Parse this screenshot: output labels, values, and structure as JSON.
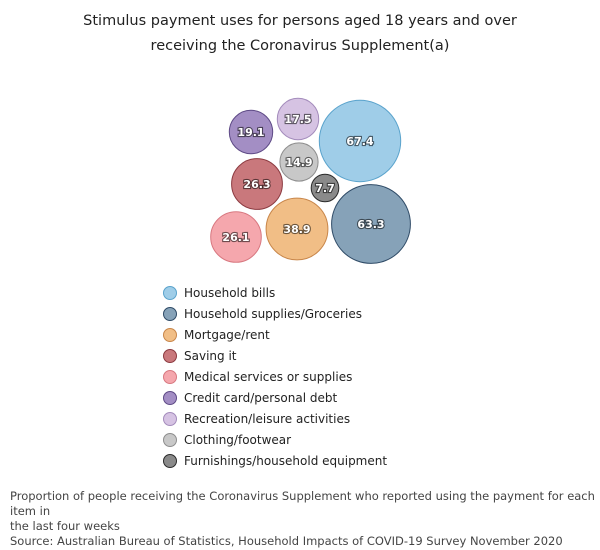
{
  "title_line1": "Stimulus payment uses for persons aged 18 years and over",
  "title_line2": "receiving the Coronavirus Supplement(a)",
  "chart_data": {
    "type": "bubble",
    "title": "Stimulus payment uses for persons aged 18 years and over receiving the Coronavirus Supplement(a)",
    "unit": "%",
    "legend_position": "bottom",
    "series": [
      {
        "name": "Household bills",
        "value": 67.4,
        "color": "#9fcde8",
        "stroke": "#5aa3cc"
      },
      {
        "name": "Household supplies/Groceries",
        "value": 63.3,
        "color": "#86a2b8",
        "stroke": "#2e4a66"
      },
      {
        "name": "Mortgage/rent",
        "value": 38.9,
        "color": "#f1be86",
        "stroke": "#c8864a"
      },
      {
        "name": "Saving it",
        "value": 26.3,
        "color": "#c9787c",
        "stroke": "#8c3a40"
      },
      {
        "name": "Medical services or supplies",
        "value": 26.1,
        "color": "#f5a7ad",
        "stroke": "#d87880"
      },
      {
        "name": "Credit card/personal debt",
        "value": 19.1,
        "color": "#a38ec4",
        "stroke": "#5e4a86"
      },
      {
        "name": "Recreation/leisure activities",
        "value": 17.5,
        "color": "#d6c3e3",
        "stroke": "#a48cbc"
      },
      {
        "name": "Clothing/footwear",
        "value": 14.9,
        "color": "#c8c8c8",
        "stroke": "#8e8e8e"
      },
      {
        "name": "Furnishings/household equipment",
        "value": 7.7,
        "color": "#8a8a8a",
        "stroke": "#2b2b2b"
      }
    ]
  },
  "footnote_line1": "Proportion of people receiving the Coronavirus Supplement who reported using the payment for each item in",
  "footnote_line2": "the last four weeks",
  "source": "Source: Australian Bureau of Statistics, Household Impacts of COVID-19 Survey November 2020"
}
